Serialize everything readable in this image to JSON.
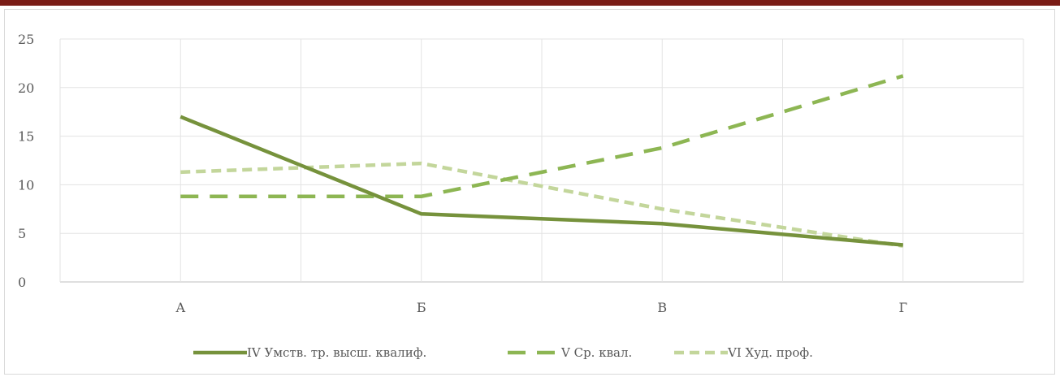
{
  "chart_data": {
    "type": "line",
    "categories": [
      "А",
      "Б",
      "В",
      "Г"
    ],
    "series": [
      {
        "name": "IV Умств. тр. высш. квалиф.",
        "values": [
          17,
          7,
          6,
          3.8
        ],
        "color": "#76923c",
        "dash": "solid"
      },
      {
        "name": "V Ср. квал.",
        "values": [
          8.8,
          8.8,
          13.8,
          21.2
        ],
        "color": "#8db653",
        "dash": "dashed"
      },
      {
        "name": "VI Худ. проф.",
        "values": [
          11.3,
          12.2,
          7.5,
          3.7
        ],
        "color": "#c3d69b",
        "dash": "short-dashed"
      }
    ],
    "ylim": [
      0,
      25
    ],
    "yticks": [
      "0",
      "5",
      "10",
      "15",
      "20",
      "25"
    ],
    "grid": true,
    "legend_position": "bottom"
  }
}
